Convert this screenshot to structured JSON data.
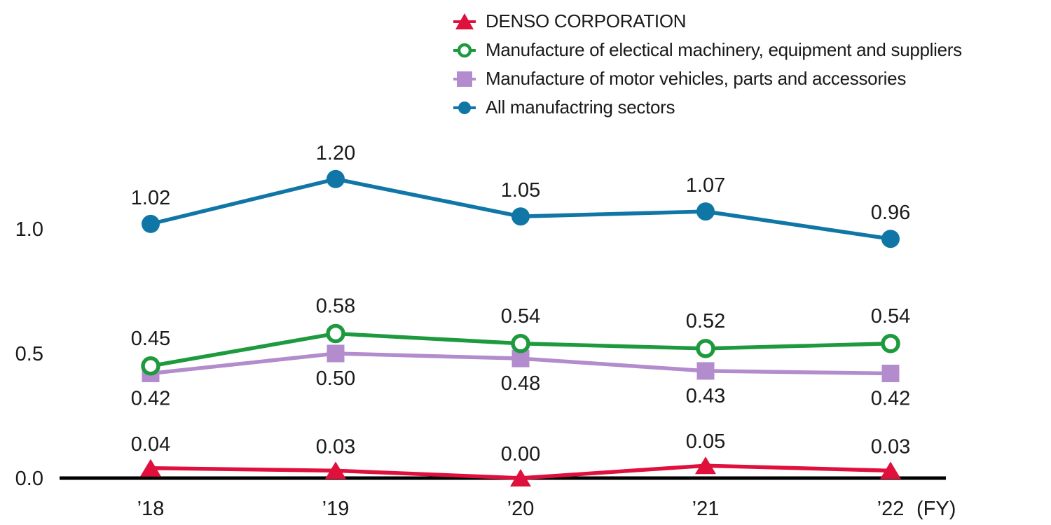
{
  "chart_data": {
    "type": "line",
    "categories": [
      "’18",
      "’19",
      "’20",
      "’21",
      "’22"
    ],
    "x_axis_suffix": "(FY)",
    "series": [
      {
        "name": "DENSO CORPORATION",
        "marker": "triangle",
        "color": "#E0103C",
        "values": [
          0.04,
          0.03,
          0.0,
          0.05,
          0.03
        ],
        "labels": [
          "0.04",
          "0.03",
          "0.00",
          "0.05",
          "0.03"
        ],
        "label_position": "above"
      },
      {
        "name": "Manufacture of electical machinery, equipment and suppliers",
        "marker": "open-circle",
        "color": "#1E9A3E",
        "values": [
          0.45,
          0.58,
          0.54,
          0.52,
          0.54
        ],
        "labels": [
          "0.45",
          "0.58",
          "0.54",
          "0.52",
          "0.54"
        ],
        "label_position": "above"
      },
      {
        "name": "Manufacture of motor vehicles, parts and accessories",
        "marker": "square",
        "color": "#B28CCC",
        "values": [
          0.42,
          0.5,
          0.48,
          0.43,
          0.42
        ],
        "labels": [
          "0.42",
          "0.50",
          "0.48",
          "0.43",
          "0.42"
        ],
        "label_position": "below"
      },
      {
        "name": "All manufactring sectors",
        "marker": "circle",
        "color": "#1076A6",
        "values": [
          1.02,
          1.2,
          1.05,
          1.07,
          0.96
        ],
        "labels": [
          "1.02",
          "1.20",
          "1.05",
          "1.07",
          "0.96"
        ],
        "label_position": "above"
      }
    ],
    "yticks": [
      {
        "value": 0.0,
        "label": "0.0"
      },
      {
        "value": 0.5,
        "label": "0.5"
      },
      {
        "value": 1.0,
        "label": "1.0"
      }
    ],
    "ylim": [
      0,
      1.4
    ],
    "grid": false,
    "legend_position": "top-center",
    "axis_color": "#000000"
  }
}
